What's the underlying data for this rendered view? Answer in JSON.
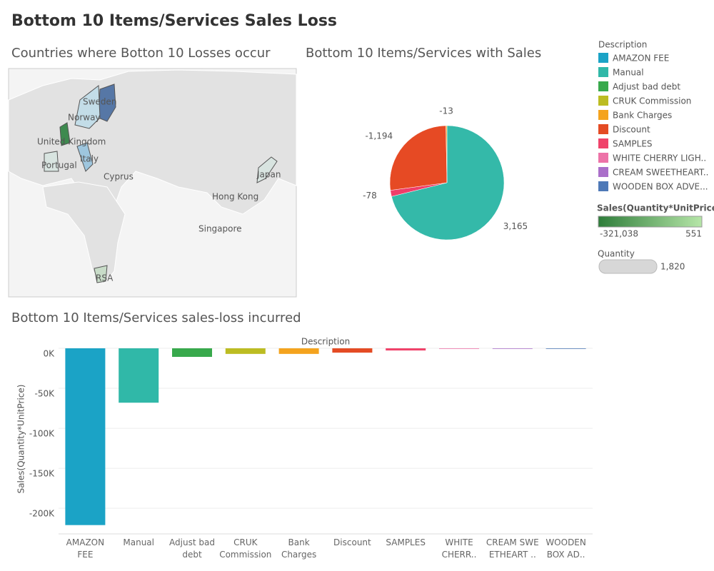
{
  "title": "Bottom 10 Items/Services Sales Loss",
  "chart_data": [
    {
      "type": "map",
      "title": "Countries where Botton 10 Losses occur",
      "labels": [
        "Sweden",
        "Norway",
        "United Kingdom",
        "Italy",
        "Portugal",
        "Cyprus",
        "Japan",
        "Hong Kong",
        "Singapore",
        "RSA"
      ]
    },
    {
      "type": "pie",
      "title": "Bottom 10 Items/Services with Sales",
      "categories": [
        "Manual",
        "SAMPLES",
        "Discount",
        "Bank Charges"
      ],
      "values": [
        3165,
        -78,
        -1194,
        -13
      ],
      "value_labels": [
        "3,165",
        "-78",
        "-1,194",
        "-13"
      ],
      "colors": [
        "#34b9a9",
        "#ef3d6a",
        "#e64a24",
        "#f4a524"
      ]
    },
    {
      "type": "bar",
      "title": "Bottom 10 Items/Services sales-loss incurred",
      "x_label": "Description",
      "y_label": "Sales(Quantity*UnitPrice)",
      "categories": [
        "AMAZON\nFEE",
        "Manual",
        "Adjust bad\ndebt",
        "CRUK\nCommission",
        "Bank\nCharges",
        "Discount",
        "SAMPLES",
        "WHITE\nCHERR..",
        "CREAM SWE\nETHEART ..",
        "WOODEN\nBOX AD.."
      ],
      "values": [
        -221000,
        -68000,
        -10700,
        -7000,
        -7000,
        -5400,
        -2700,
        -500,
        -500,
        -500
      ],
      "colors": [
        "#1ba3c6",
        "#30b8a8",
        "#38a94c",
        "#bcbc22",
        "#f4a31e",
        "#e44b24",
        "#f0436a",
        "#ed73a8",
        "#aa6fc9",
        "#4e79b7"
      ],
      "ylim": [
        -232000,
        0
      ],
      "yticks": [
        {
          "value": 0,
          "label": "0K"
        },
        {
          "value": -50000,
          "label": "-50K"
        },
        {
          "value": -100000,
          "label": "-100K"
        },
        {
          "value": -150000,
          "label": "-150K"
        },
        {
          "value": -200000,
          "label": "-200K"
        }
      ],
      "grid": true
    }
  ],
  "legend": {
    "title": "Description",
    "items": [
      {
        "name": "AMAZON FEE",
        "color": "#1ba3c6"
      },
      {
        "name": "Manual",
        "color": "#30b8a8"
      },
      {
        "name": "Adjust bad debt",
        "color": "#38a94c"
      },
      {
        "name": "CRUK Commission",
        "color": "#bcbc22"
      },
      {
        "name": "Bank Charges",
        "color": "#f4a31e"
      },
      {
        "name": "Discount",
        "color": "#e44b24"
      },
      {
        "name": "SAMPLES",
        "color": "#f0436a"
      },
      {
        "name": "WHITE CHERRY LIGH..",
        "color": "#ed73a8"
      },
      {
        "name": "CREAM SWEETHEART..",
        "color": "#aa6fc9"
      },
      {
        "name": "WOODEN BOX ADVE...",
        "color": "#4e79b7"
      }
    ]
  },
  "color_legend": {
    "title": "Sales(Quantity*UnitPrice)",
    "min": {
      "value": -321038,
      "label": "-321,038"
    },
    "max": 551,
    "colors": [
      "#2e7d3a",
      "#b6e6a8"
    ]
  },
  "size_legend": {
    "title": "Quantity",
    "max": {
      "value": 1820,
      "label": "1,820"
    }
  }
}
